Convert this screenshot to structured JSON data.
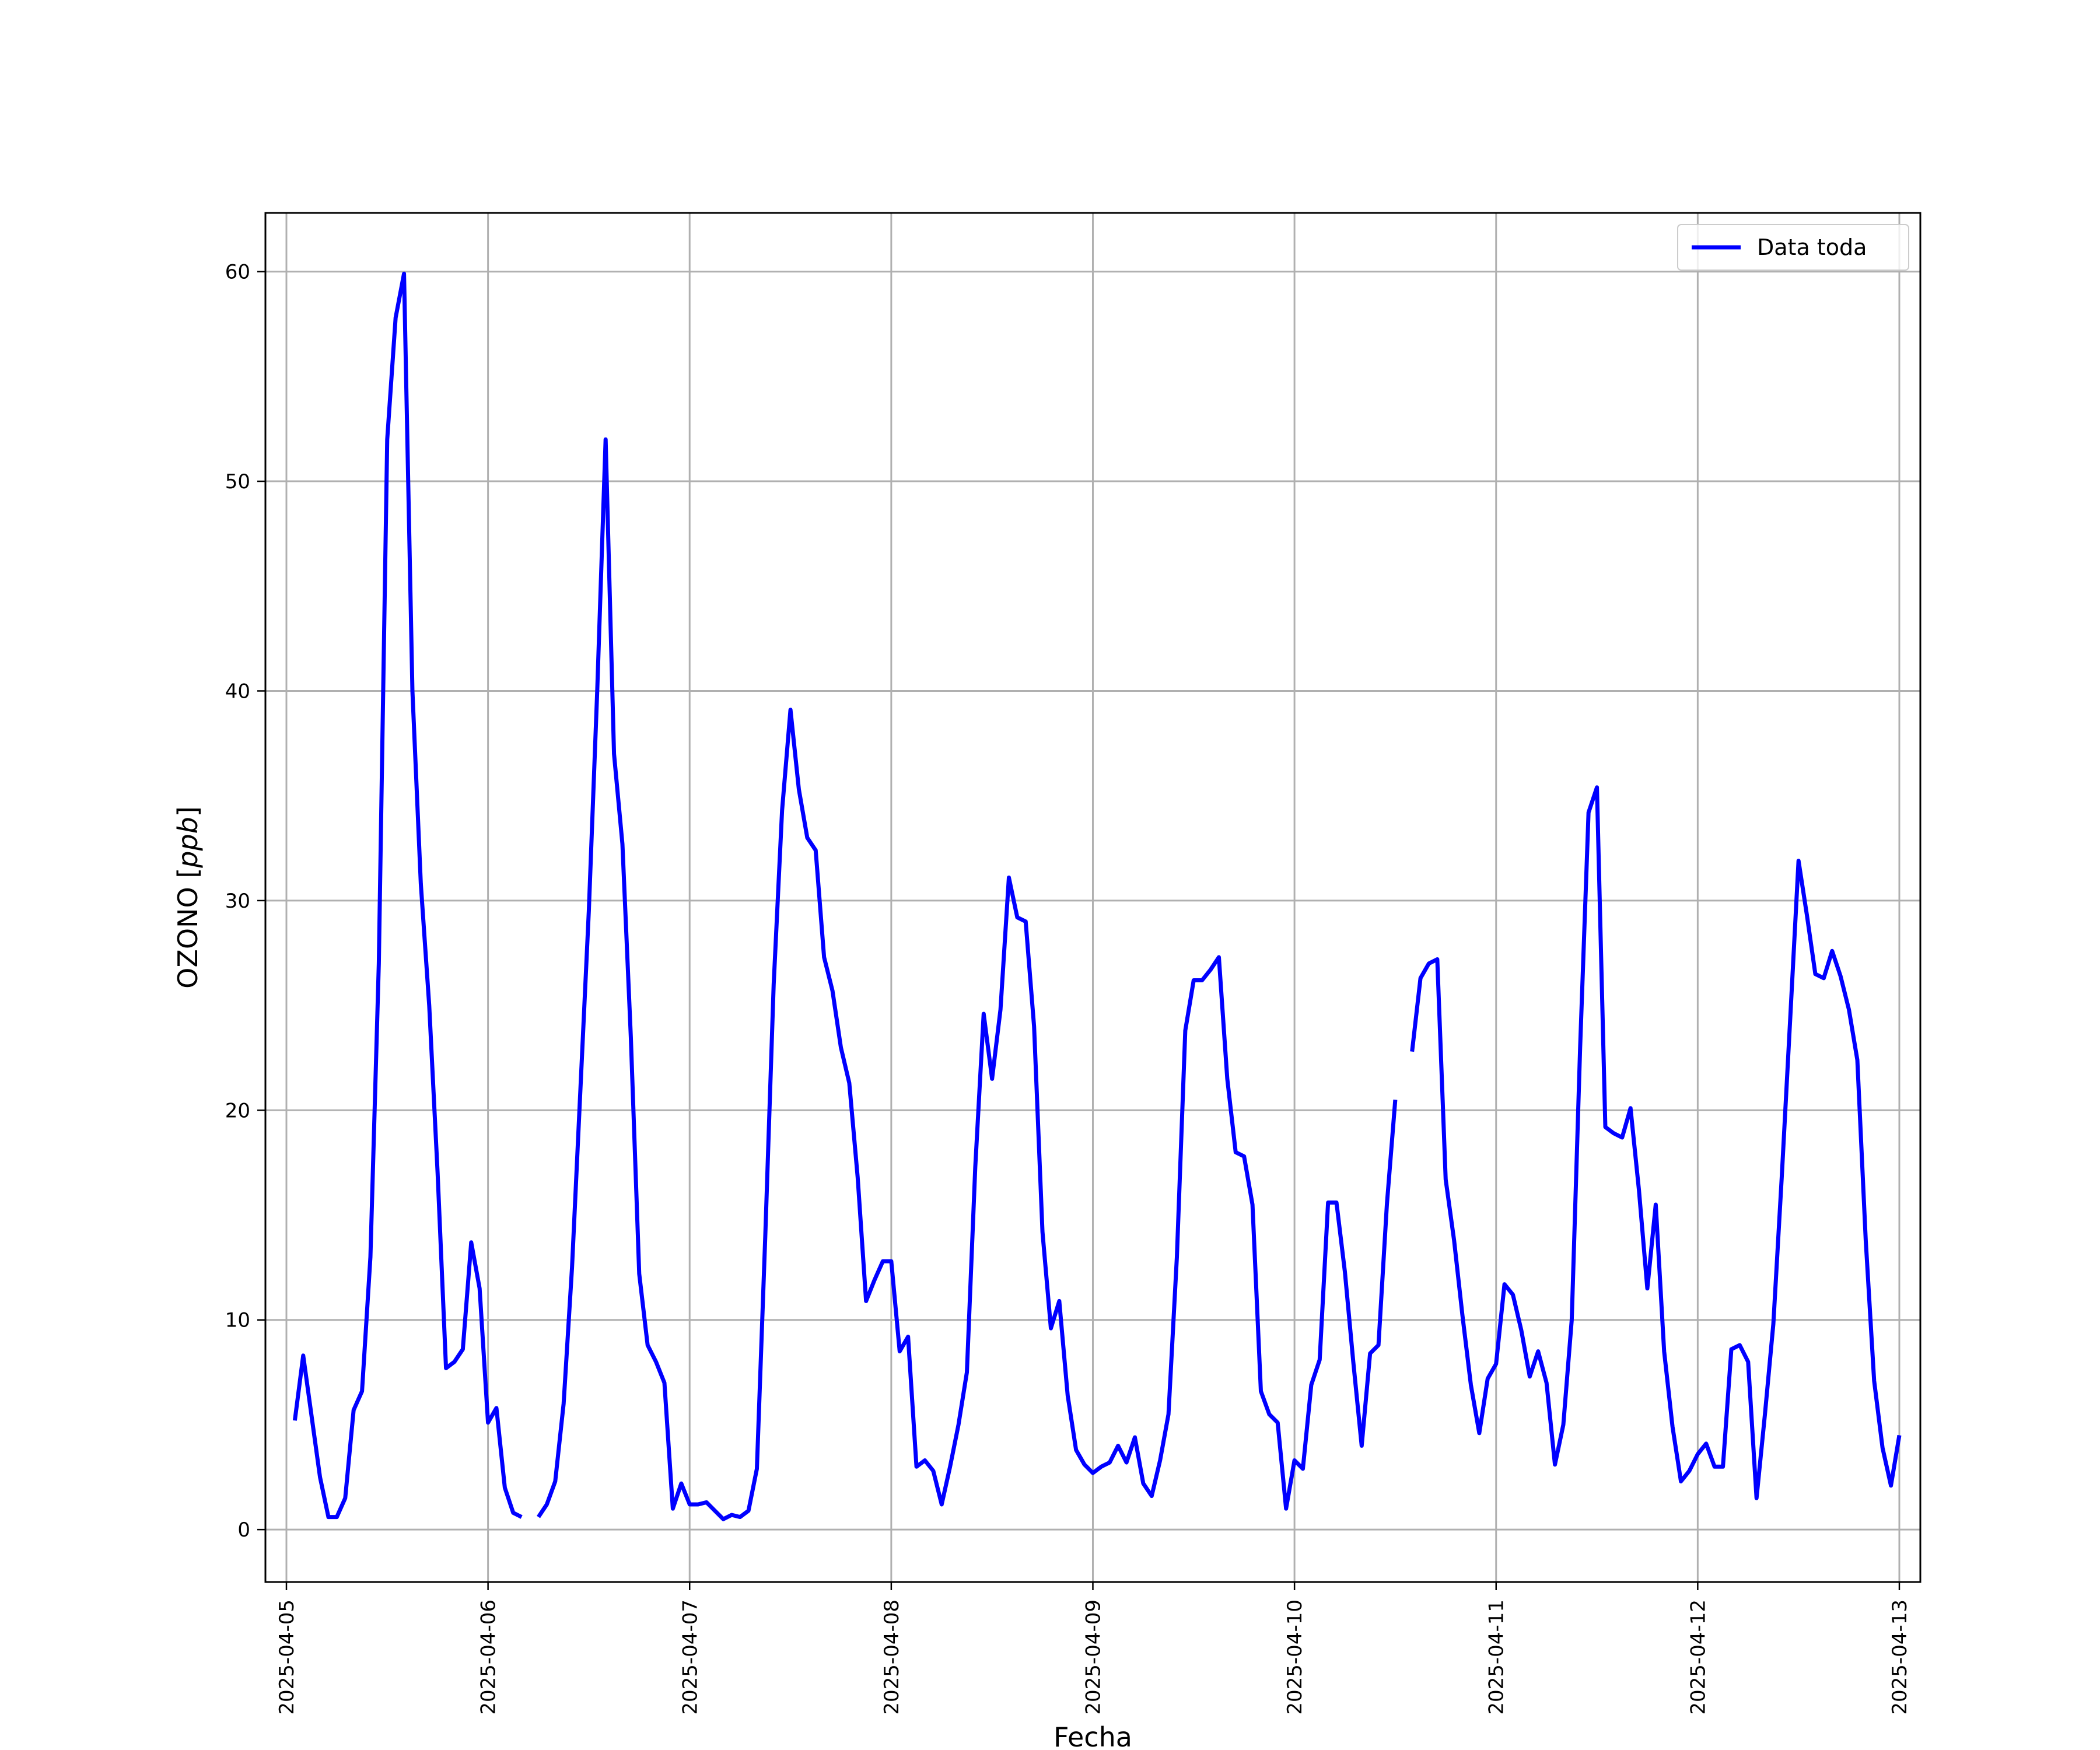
{
  "chart_data": {
    "type": "line",
    "xlabel": "Fecha",
    "ylabel": "OZONO [ppb]",
    "ylabel_parts": {
      "prefix": "OZONO [",
      "unit": "ppb",
      "suffix": "]"
    },
    "x_range": [
      "2025-04-04T21:30",
      "2025-04-13T02:30"
    ],
    "ylim": [
      -2.5,
      62.8
    ],
    "y_ticks": [
      0,
      10,
      20,
      30,
      40,
      50,
      60
    ],
    "x_ticks": [
      "2025-04-05",
      "2025-04-06",
      "2025-04-07",
      "2025-04-08",
      "2025-04-09",
      "2025-04-10",
      "2025-04-11",
      "2025-04-12",
      "2025-04-13"
    ],
    "grid": true,
    "legend_position": "top-right",
    "colors": {
      "series": "#0000ff",
      "grid": "#b0b0b0"
    },
    "series": [
      {
        "name": "Data toda",
        "segments": [
          [
            [
              "2025-04-05T01:00",
              5.2
            ],
            [
              "2025-04-05T02:00",
              8.3
            ],
            [
              "2025-04-05T03:00",
              5.4
            ],
            [
              "2025-04-05T04:00",
              2.5
            ],
            [
              "2025-04-05T05:00",
              0.6
            ],
            [
              "2025-04-05T06:00",
              0.6
            ],
            [
              "2025-04-05T07:00",
              1.5
            ],
            [
              "2025-04-05T08:00",
              5.7
            ],
            [
              "2025-04-05T09:00",
              6.6
            ],
            [
              "2025-04-05T10:00",
              13.0
            ],
            [
              "2025-04-05T11:00",
              27.0
            ],
            [
              "2025-04-05T12:00",
              52.0
            ],
            [
              "2025-04-05T13:00",
              57.8
            ],
            [
              "2025-04-05T14:00",
              59.9
            ],
            [
              "2025-04-05T15:00",
              40.0
            ],
            [
              "2025-04-05T16:00",
              30.8
            ],
            [
              "2025-04-05T17:00",
              25.0
            ],
            [
              "2025-04-05T18:00",
              17.0
            ],
            [
              "2025-04-05T19:00",
              7.7
            ],
            [
              "2025-04-05T20:00",
              8.0
            ],
            [
              "2025-04-05T21:00",
              8.6
            ],
            [
              "2025-04-05T22:00",
              13.7
            ],
            [
              "2025-04-05T23:00",
              11.5
            ],
            [
              "2025-04-06T00:00",
              5.1
            ],
            [
              "2025-04-06T01:00",
              5.8
            ],
            [
              "2025-04-06T02:00",
              2.0
            ],
            [
              "2025-04-06T03:00",
              0.8
            ],
            [
              "2025-04-06T04:00",
              0.6
            ]
          ],
          [
            [
              "2025-04-06T06:00",
              0.6
            ],
            [
              "2025-04-06T07:00",
              1.2
            ],
            [
              "2025-04-06T08:00",
              2.3
            ],
            [
              "2025-04-06T09:00",
              6.0
            ],
            [
              "2025-04-06T10:00",
              12.5
            ],
            [
              "2025-04-06T11:00",
              21.0
            ],
            [
              "2025-04-06T12:00",
              29.5
            ],
            [
              "2025-04-06T13:00",
              40.0
            ],
            [
              "2025-04-06T14:00",
              52.0
            ],
            [
              "2025-04-06T15:00",
              37.0
            ],
            [
              "2025-04-06T16:00",
              32.7
            ],
            [
              "2025-04-06T17:00",
              23.5
            ],
            [
              "2025-04-06T18:00",
              12.2
            ],
            [
              "2025-04-06T19:00",
              8.8
            ],
            [
              "2025-04-06T20:00",
              8.0
            ],
            [
              "2025-04-06T21:00",
              7.0
            ],
            [
              "2025-04-06T22:00",
              1.0
            ],
            [
              "2025-04-06T23:00",
              2.2
            ],
            [
              "2025-04-07T00:00",
              1.2
            ],
            [
              "2025-04-07T01:00",
              1.2
            ],
            [
              "2025-04-07T02:00",
              1.3
            ],
            [
              "2025-04-07T03:00",
              0.9
            ],
            [
              "2025-04-07T04:00",
              0.5
            ],
            [
              "2025-04-07T05:00",
              0.7
            ],
            [
              "2025-04-07T06:00",
              0.6
            ],
            [
              "2025-04-07T07:00",
              0.9
            ],
            [
              "2025-04-07T08:00",
              2.9
            ],
            [
              "2025-04-07T09:00",
              14.0
            ],
            [
              "2025-04-07T10:00",
              26.0
            ],
            [
              "2025-04-07T11:00",
              34.3
            ],
            [
              "2025-04-07T12:00",
              39.1
            ],
            [
              "2025-04-07T13:00",
              35.3
            ],
            [
              "2025-04-07T14:00",
              33.0
            ],
            [
              "2025-04-07T15:00",
              32.4
            ],
            [
              "2025-04-07T16:00",
              27.3
            ],
            [
              "2025-04-07T17:00",
              25.7
            ],
            [
              "2025-04-07T18:00",
              23.0
            ],
            [
              "2025-04-07T19:00",
              21.3
            ],
            [
              "2025-04-07T20:00",
              16.8
            ],
            [
              "2025-04-07T21:00",
              10.9
            ],
            [
              "2025-04-07T22:00",
              11.9
            ],
            [
              "2025-04-07T23:00",
              12.8
            ],
            [
              "2025-04-08T00:00",
              12.8
            ],
            [
              "2025-04-08T01:00",
              8.5
            ],
            [
              "2025-04-08T02:00",
              9.2
            ],
            [
              "2025-04-08T03:00",
              3.0
            ],
            [
              "2025-04-08T04:00",
              3.3
            ],
            [
              "2025-04-08T05:00",
              2.8
            ],
            [
              "2025-04-08T06:00",
              1.2
            ],
            [
              "2025-04-08T07:00",
              3.0
            ],
            [
              "2025-04-08T08:00",
              5.0
            ],
            [
              "2025-04-08T09:00",
              7.5
            ],
            [
              "2025-04-08T10:00",
              17.3
            ],
            [
              "2025-04-08T11:00",
              24.6
            ],
            [
              "2025-04-08T12:00",
              21.5
            ],
            [
              "2025-04-08T13:00",
              24.8
            ],
            [
              "2025-04-08T14:00",
              31.1
            ],
            [
              "2025-04-08T15:00",
              29.2
            ],
            [
              "2025-04-08T16:00",
              29.0
            ],
            [
              "2025-04-08T17:00",
              24.0
            ],
            [
              "2025-04-08T18:00",
              14.2
            ],
            [
              "2025-04-08T19:00",
              9.6
            ],
            [
              "2025-04-08T20:00",
              10.9
            ],
            [
              "2025-04-08T21:00",
              6.4
            ],
            [
              "2025-04-08T22:00",
              3.8
            ],
            [
              "2025-04-08T23:00",
              3.1
            ],
            [
              "2025-04-09T00:00",
              2.7
            ],
            [
              "2025-04-09T01:00",
              3.0
            ],
            [
              "2025-04-09T02:00",
              3.2
            ],
            [
              "2025-04-09T03:00",
              4.0
            ],
            [
              "2025-04-09T04:00",
              3.2
            ],
            [
              "2025-04-09T05:00",
              4.4
            ],
            [
              "2025-04-09T06:00",
              2.2
            ],
            [
              "2025-04-09T07:00",
              1.6
            ],
            [
              "2025-04-09T08:00",
              3.3
            ],
            [
              "2025-04-09T09:00",
              5.5
            ],
            [
              "2025-04-09T10:00",
              13.0
            ],
            [
              "2025-04-09T11:00",
              23.8
            ],
            [
              "2025-04-09T12:00",
              26.2
            ],
            [
              "2025-04-09T13:00",
              26.2
            ],
            [
              "2025-04-09T14:00",
              26.7
            ],
            [
              "2025-04-09T15:00",
              27.3
            ],
            [
              "2025-04-09T16:00",
              21.5
            ],
            [
              "2025-04-09T17:00",
              18.0
            ],
            [
              "2025-04-09T18:00",
              17.8
            ],
            [
              "2025-04-09T19:00",
              15.5
            ],
            [
              "2025-04-09T20:00",
              6.6
            ],
            [
              "2025-04-09T21:00",
              5.5
            ],
            [
              "2025-04-09T22:00",
              5.1
            ],
            [
              "2025-04-09T23:00",
              1.0
            ],
            [
              "2025-04-10T00:00",
              3.3
            ],
            [
              "2025-04-10T01:00",
              2.9
            ],
            [
              "2025-04-10T02:00",
              6.9
            ],
            [
              "2025-04-10T03:00",
              8.1
            ],
            [
              "2025-04-10T04:00",
              15.6
            ],
            [
              "2025-04-10T05:00",
              15.6
            ],
            [
              "2025-04-10T06:00",
              12.3
            ],
            [
              "2025-04-10T07:00",
              8.0
            ],
            [
              "2025-04-10T08:00",
              4.0
            ],
            [
              "2025-04-10T09:00",
              8.4
            ],
            [
              "2025-04-10T10:00",
              8.8
            ],
            [
              "2025-04-10T11:00",
              15.5
            ],
            [
              "2025-04-10T12:00",
              20.5
            ]
          ],
          [
            [
              "2025-04-10T14:00",
              22.8
            ],
            [
              "2025-04-10T15:00",
              26.3
            ],
            [
              "2025-04-10T16:00",
              27.0
            ],
            [
              "2025-04-10T17:00",
              27.2
            ],
            [
              "2025-04-10T18:00",
              16.7
            ],
            [
              "2025-04-10T19:00",
              13.8
            ],
            [
              "2025-04-10T20:00",
              10.2
            ],
            [
              "2025-04-10T21:00",
              6.9
            ],
            [
              "2025-04-10T22:00",
              4.6
            ],
            [
              "2025-04-10T23:00",
              7.2
            ],
            [
              "2025-04-11T00:00",
              7.9
            ],
            [
              "2025-04-11T01:00",
              11.7
            ],
            [
              "2025-04-11T02:00",
              11.2
            ],
            [
              "2025-04-11T03:00",
              9.5
            ],
            [
              "2025-04-11T04:00",
              7.3
            ],
            [
              "2025-04-11T05:00",
              8.5
            ],
            [
              "2025-04-11T06:00",
              7.0
            ],
            [
              "2025-04-11T07:00",
              3.1
            ],
            [
              "2025-04-11T08:00",
              5.0
            ],
            [
              "2025-04-11T09:00",
              10.0
            ],
            [
              "2025-04-11T10:00",
              23.0
            ],
            [
              "2025-04-11T11:00",
              34.2
            ],
            [
              "2025-04-11T12:00",
              35.4
            ],
            [
              "2025-04-11T13:00",
              19.2
            ],
            [
              "2025-04-11T14:00",
              18.9
            ],
            [
              "2025-04-11T15:00",
              18.7
            ],
            [
              "2025-04-11T16:00",
              20.1
            ],
            [
              "2025-04-11T17:00",
              16.2
            ],
            [
              "2025-04-11T18:00",
              11.5
            ],
            [
              "2025-04-11T19:00",
              15.5
            ],
            [
              "2025-04-11T20:00",
              8.5
            ],
            [
              "2025-04-11T21:00",
              4.9
            ],
            [
              "2025-04-11T22:00",
              2.3
            ],
            [
              "2025-04-11T23:00",
              2.8
            ],
            [
              "2025-04-12T00:00",
              3.6
            ],
            [
              "2025-04-12T01:00",
              4.1
            ],
            [
              "2025-04-12T02:00",
              3.0
            ],
            [
              "2025-04-12T03:00",
              3.0
            ],
            [
              "2025-04-12T04:00",
              8.6
            ],
            [
              "2025-04-12T05:00",
              8.8
            ],
            [
              "2025-04-12T06:00",
              8.0
            ],
            [
              "2025-04-12T07:00",
              1.5
            ],
            [
              "2025-04-12T08:00",
              5.5
            ],
            [
              "2025-04-12T09:00",
              9.8
            ],
            [
              "2025-04-12T10:00",
              16.8
            ],
            [
              "2025-04-12T11:00",
              24.3
            ],
            [
              "2025-04-12T12:00",
              31.9
            ],
            [
              "2025-04-12T13:00",
              29.3
            ],
            [
              "2025-04-12T14:00",
              26.5
            ],
            [
              "2025-04-12T15:00",
              26.3
            ],
            [
              "2025-04-12T16:00",
              27.6
            ],
            [
              "2025-04-12T17:00",
              26.4
            ],
            [
              "2025-04-12T18:00",
              24.8
            ],
            [
              "2025-04-12T19:00",
              22.4
            ],
            [
              "2025-04-12T20:00",
              13.8
            ],
            [
              "2025-04-12T21:00",
              7.1
            ],
            [
              "2025-04-12T22:00",
              3.9
            ],
            [
              "2025-04-12T23:00",
              2.1
            ],
            [
              "2025-04-13T00:00",
              4.5
            ]
          ]
        ]
      }
    ]
  }
}
